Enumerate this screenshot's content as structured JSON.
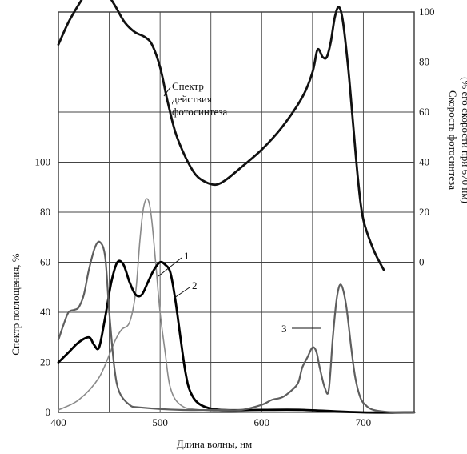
{
  "chart_data": {
    "type": "line",
    "x_axis": {
      "label": "Длина волны, нм",
      "range": [
        400,
        750
      ],
      "ticks": [
        400,
        500,
        600,
        700
      ],
      "grid": [
        400,
        450,
        500,
        550,
        600,
        650,
        700,
        750
      ]
    },
    "y_left": {
      "label": "Спектр поглощения, %",
      "range": [
        0,
        160
      ],
      "ticks": [
        0,
        20,
        40,
        60,
        80,
        100
      ]
    },
    "y_right": {
      "label_line1": "Скорость фотосинтеза",
      "label_line2": "(% его скорости при 670 нм)",
      "ticks": [
        0,
        20,
        40,
        60,
        80,
        100
      ],
      "note": "right axis value v is plotted at left-axis value 60 + v"
    },
    "grid": true,
    "annotations": {
      "action_spectrum": [
        "Спектр",
        "действия",
        "фотосинтеза"
      ],
      "curve_1": "1",
      "curve_2": "2",
      "curve_3": "3"
    },
    "series": [
      {
        "name": "Спектр действия фотосинтеза",
        "axis": "right",
        "color": "#111111",
        "x": [
          400,
          410,
          420,
          430,
          437,
          445,
          455,
          465,
          475,
          485,
          492,
          500,
          507,
          515,
          525,
          535,
          545,
          555,
          565,
          580,
          600,
          620,
          640,
          650,
          655,
          660,
          664,
          668,
          672,
          676,
          680,
          685,
          690,
          695,
          700,
          710,
          720
        ],
        "y": [
          87,
          96,
          103,
          109,
          110,
          109,
          103,
          96,
          92,
          90,
          87,
          78,
          65,
          52,
          42,
          35,
          32,
          31,
          33,
          38,
          45,
          54,
          66,
          76,
          85,
          82,
          82,
          88,
          98,
          102,
          96,
          78,
          55,
          32,
          17,
          5,
          -3
        ]
      },
      {
        "name": "1",
        "axis": "left",
        "color": "#8a8a8a",
        "x": [
          400,
          420,
          440,
          455,
          462,
          470,
          476,
          480,
          483,
          486,
          489,
          492,
          496,
          500,
          505,
          510,
          520,
          540,
          600,
          750
        ],
        "y": [
          1,
          5,
          14,
          28,
          33,
          36,
          48,
          68,
          80,
          85,
          84,
          76,
          58,
          40,
          24,
          10,
          3,
          1,
          0,
          0
        ]
      },
      {
        "name": "2",
        "axis": "left",
        "color": "#000000",
        "x": [
          400,
          410,
          420,
          430,
          435,
          440,
          446,
          452,
          458,
          464,
          470,
          476,
          482,
          488,
          494,
          500,
          505,
          510,
          515,
          520,
          525,
          530,
          540,
          560,
          600,
          640,
          700,
          750
        ],
        "y": [
          20,
          24,
          28,
          30,
          27,
          26,
          38,
          52,
          60,
          59,
          52,
          47,
          47,
          52,
          57,
          60,
          59,
          56,
          45,
          30,
          16,
          8,
          3,
          1,
          1,
          1,
          0,
          0
        ]
      },
      {
        "name": "3",
        "axis": "left",
        "color": "#5e5e5e",
        "x": [
          400,
          405,
          410,
          416,
          420,
          425,
          430,
          436,
          441,
          446,
          450,
          455,
          460,
          470,
          480,
          520,
          560,
          580,
          600,
          610,
          620,
          630,
          636,
          640,
          645,
          650,
          654,
          657,
          662,
          666,
          670,
          674,
          678,
          683,
          688,
          692,
          697,
          702,
          710,
          730,
          750
        ],
        "y": [
          29,
          35,
          40,
          41,
          42,
          47,
          57,
          66,
          68,
          62,
          40,
          18,
          8,
          3,
          2,
          1,
          1,
          1,
          3,
          5,
          6,
          9,
          12,
          18,
          22,
          26,
          24,
          18,
          10,
          9,
          30,
          46,
          51,
          43,
          26,
          14,
          6,
          3,
          1,
          0,
          0
        ]
      }
    ]
  }
}
